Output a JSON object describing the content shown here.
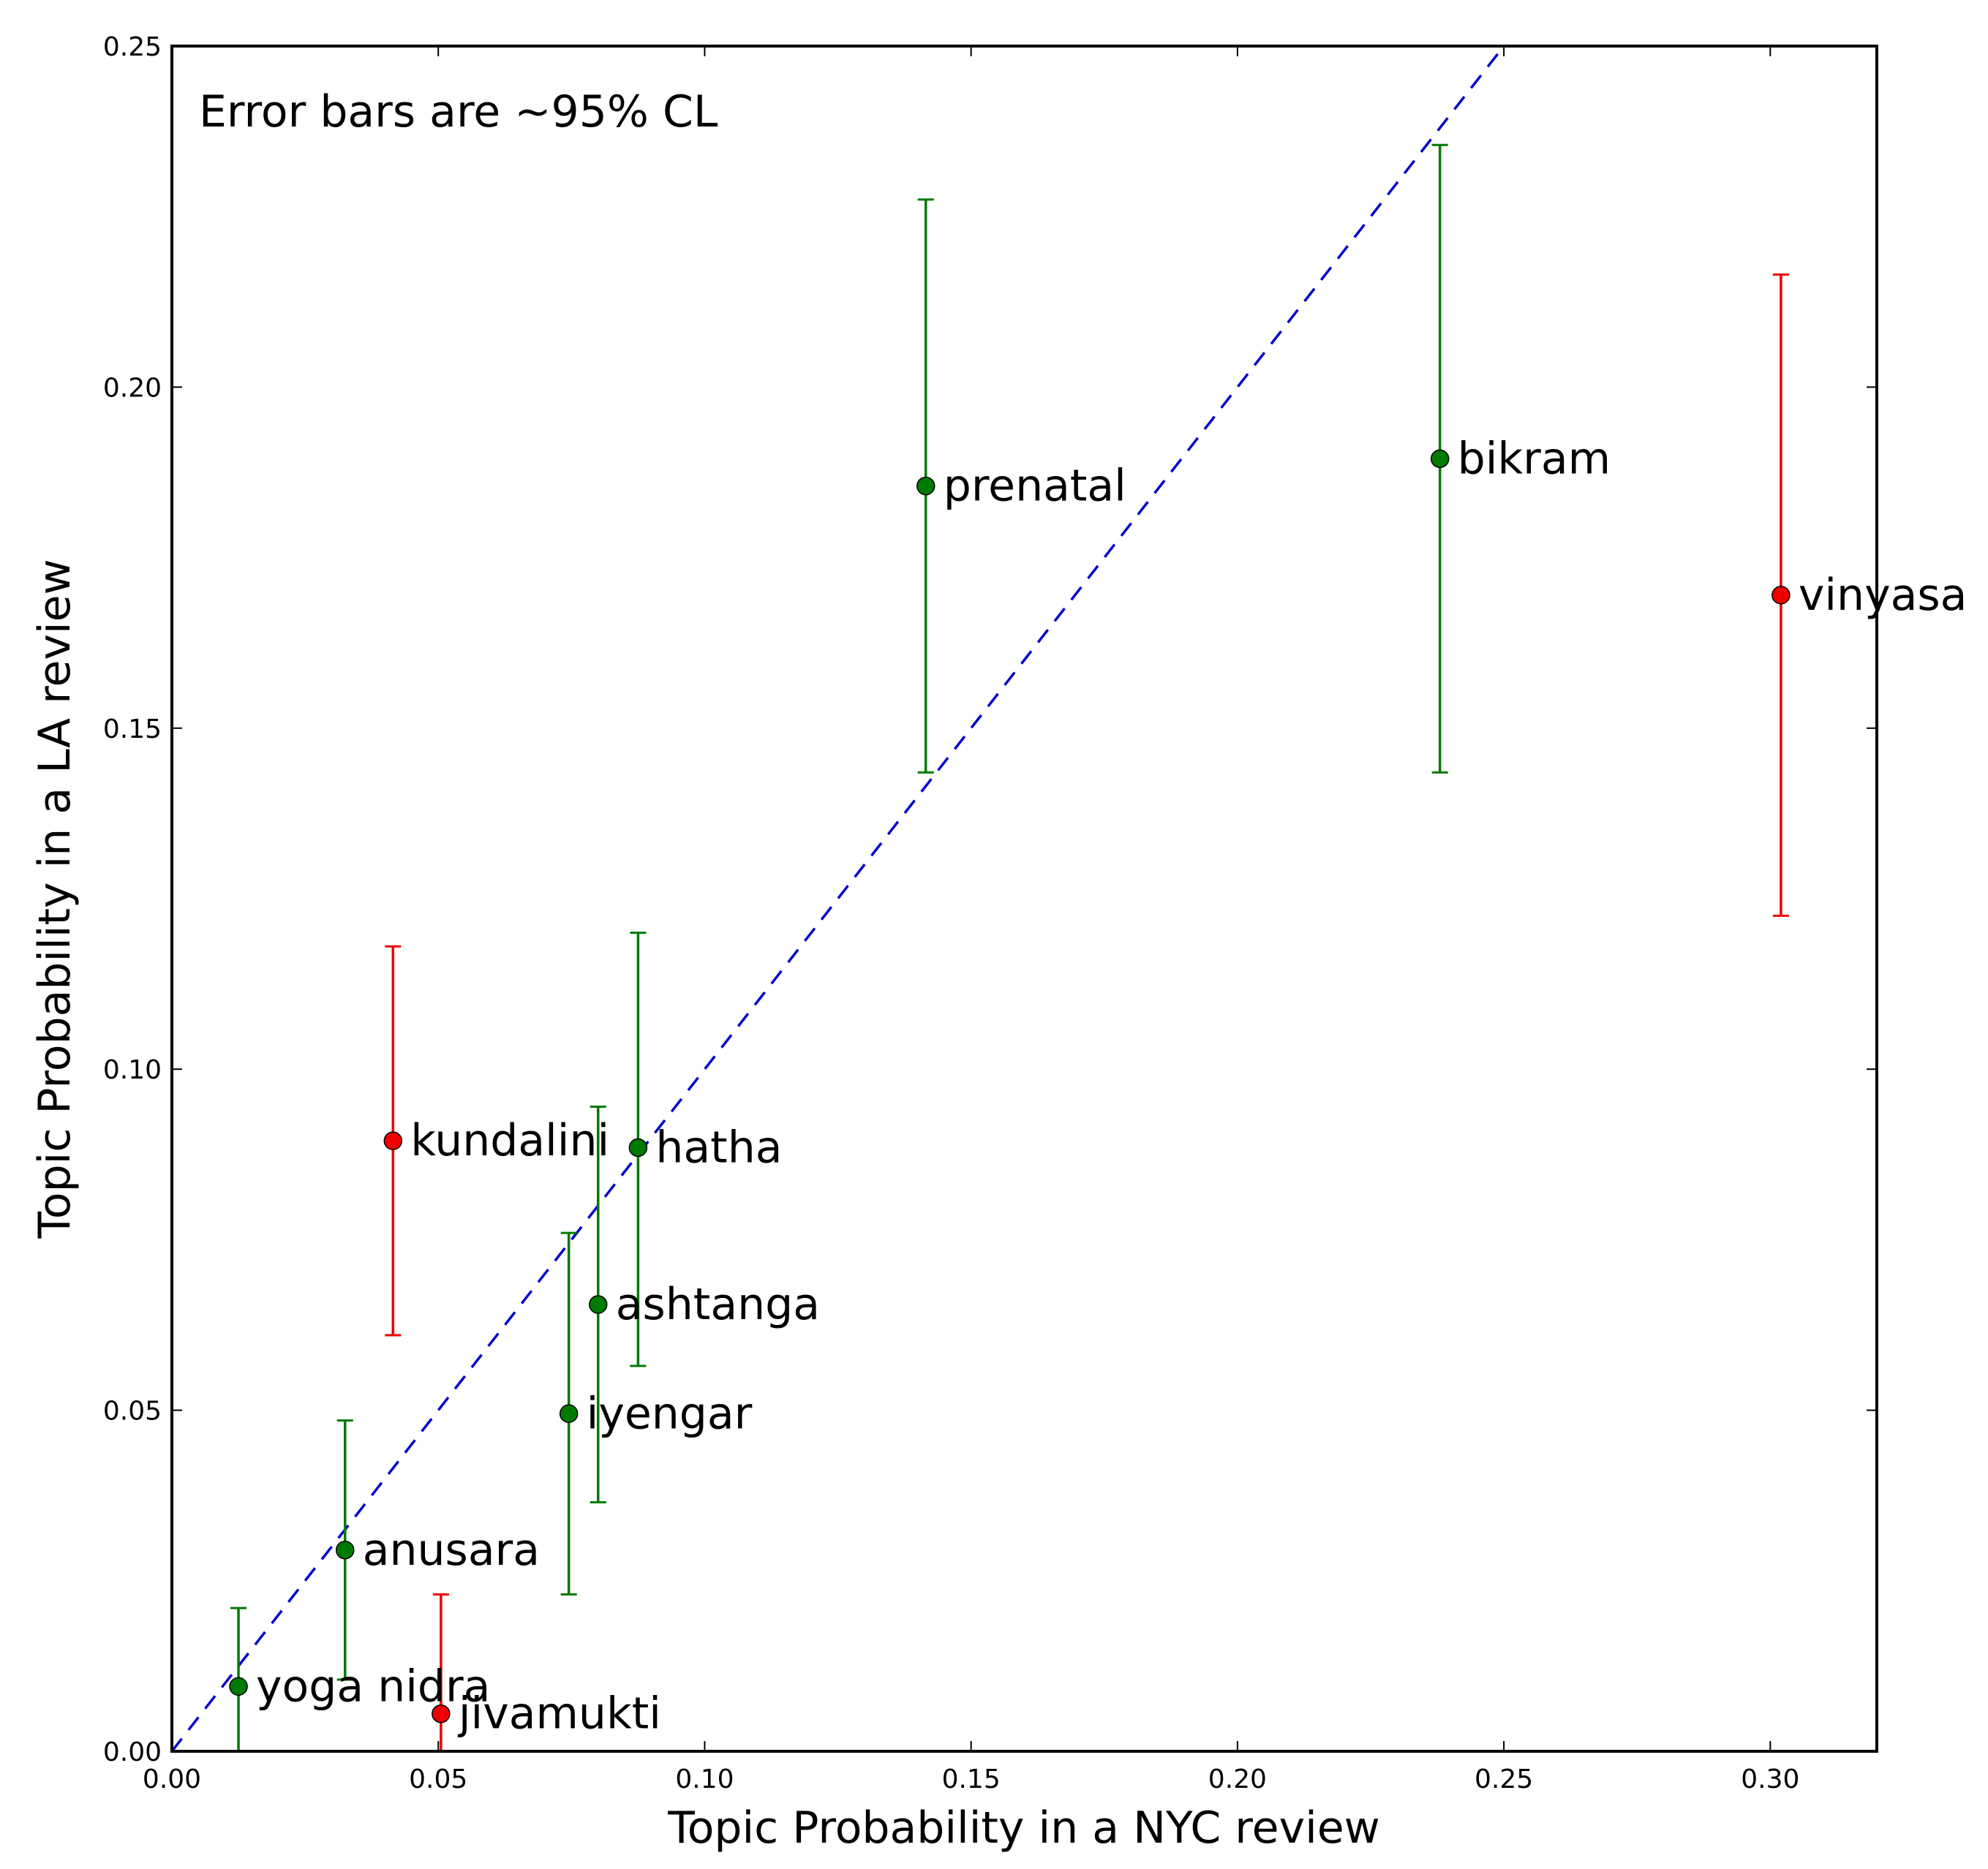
{
  "chart_data": {
    "type": "scatter",
    "title": "",
    "xlabel": "Topic Probability in a NYC review",
    "ylabel": "Topic Probability in a LA review",
    "annotation": "Error bars are ~95% CL",
    "xlim": [
      0.0,
      0.32
    ],
    "ylim": [
      0.0,
      0.25
    ],
    "xticks": [
      "0.00",
      "0.05",
      "0.10",
      "0.15",
      "0.20",
      "0.25",
      "0.30"
    ],
    "yticks": [
      "0.00",
      "0.05",
      "0.10",
      "0.15",
      "0.20",
      "0.25"
    ],
    "grid": false,
    "reference_line": {
      "style": "dashed",
      "color": "#0000cc",
      "x": [
        0.0,
        0.25
      ],
      "y": [
        0.0,
        0.25
      ]
    },
    "colors": {
      "consistent": "#007a00",
      "inconsistent": "#ee0000"
    },
    "points": [
      {
        "label": "yoga nidra",
        "x": 0.0125,
        "y": 0.0095,
        "y_low": 0.0,
        "y_high": 0.021,
        "color": "#007a00"
      },
      {
        "label": "anusara",
        "x": 0.0325,
        "y": 0.0295,
        "y_low": 0.0105,
        "y_high": 0.0485,
        "color": "#007a00"
      },
      {
        "label": "jivamukti",
        "x": 0.0505,
        "y": 0.0055,
        "y_low": 0.0,
        "y_high": 0.023,
        "color": "#ee0000"
      },
      {
        "label": "kundalini",
        "x": 0.0415,
        "y": 0.0895,
        "y_low": 0.061,
        "y_high": 0.118,
        "color": "#ee0000"
      },
      {
        "label": "iyengar",
        "x": 0.0745,
        "y": 0.0495,
        "y_low": 0.023,
        "y_high": 0.076,
        "color": "#007a00"
      },
      {
        "label": "ashtanga",
        "x": 0.08,
        "y": 0.0655,
        "y_low": 0.0365,
        "y_high": 0.0945,
        "color": "#007a00"
      },
      {
        "label": "hatha",
        "x": 0.0875,
        "y": 0.0885,
        "y_low": 0.0565,
        "y_high": 0.12,
        "color": "#007a00"
      },
      {
        "label": "prenatal",
        "x": 0.1415,
        "y": 0.1855,
        "y_low": 0.1435,
        "y_high": 0.2275,
        "color": "#007a00"
      },
      {
        "label": "bikram",
        "x": 0.238,
        "y": 0.1895,
        "y_low": 0.1435,
        "y_high": 0.2355,
        "color": "#007a00"
      },
      {
        "label": "vinyasa",
        "x": 0.302,
        "y": 0.1695,
        "y_low": 0.1225,
        "y_high": 0.2165,
        "color": "#ee0000"
      }
    ]
  }
}
